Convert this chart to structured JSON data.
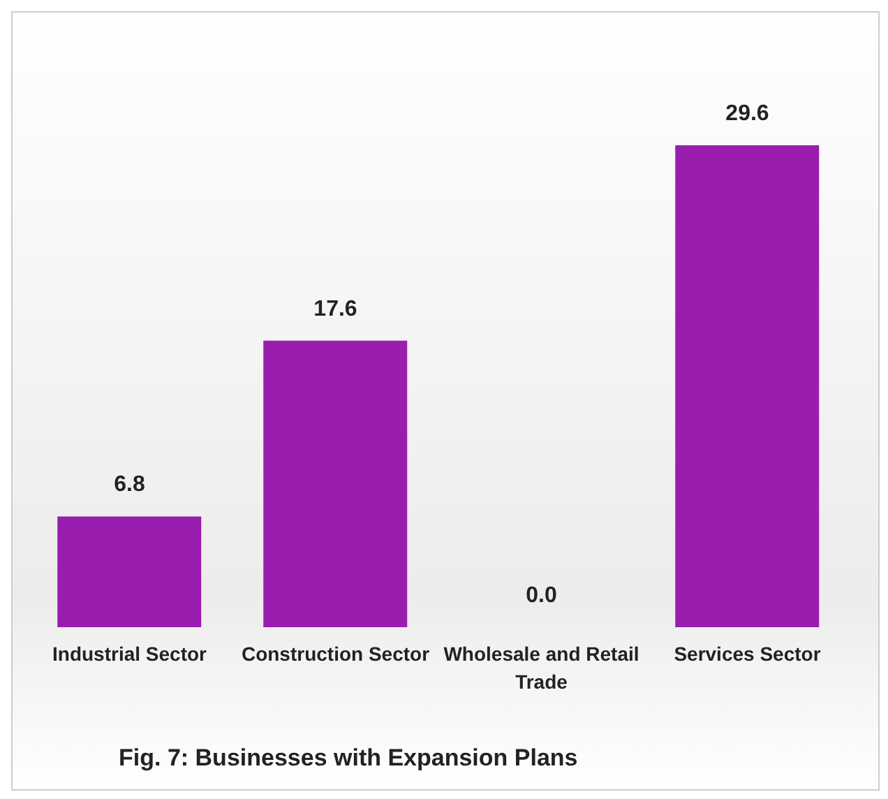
{
  "chart_data": {
    "type": "bar",
    "title": "Fig. 7: Businesses with Expansion Plans",
    "categories": [
      "Industrial Sector",
      "Construction Sector",
      "Wholesale and Retail Trade",
      "Services Sector"
    ],
    "values": [
      6.8,
      17.6,
      0.0,
      29.6
    ],
    "value_labels": [
      "6.8",
      "17.6",
      "0.0",
      "29.6"
    ],
    "color": "#991eb0"
  }
}
